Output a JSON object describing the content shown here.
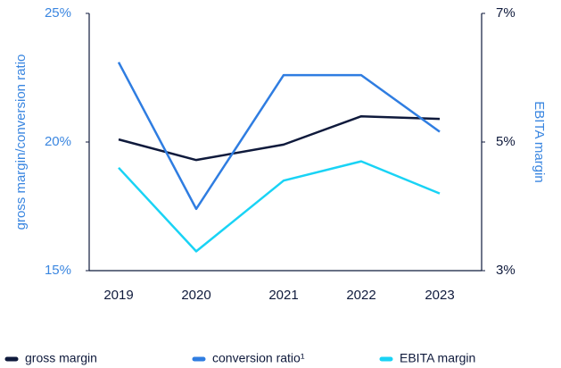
{
  "chart_data": {
    "type": "line",
    "categories": [
      "2019",
      "2020",
      "2021",
      "2022",
      "2023"
    ],
    "ylabel": "gross margin/conversion ratio",
    "y2label": "EBITA margin",
    "ylim": [
      15,
      25
    ],
    "yticks": [
      {
        "value": 15,
        "label": "15%"
      },
      {
        "value": 20,
        "label": "20%"
      },
      {
        "value": 25,
        "label": "25%"
      }
    ],
    "y2lim": [
      3,
      7
    ],
    "y2ticks": [
      {
        "value": 3,
        "label": "3%"
      },
      {
        "value": 5,
        "label": "5%"
      },
      {
        "value": 7,
        "label": "7%"
      }
    ],
    "legend": "bottom",
    "series": [
      {
        "name": "gross margin",
        "color": "#0f1a3c",
        "values": [
          20.1,
          19.3,
          19.9,
          21.0,
          20.9
        ]
      },
      {
        "name": "conversion ratio¹",
        "color": "#2f7de1",
        "values": [
          23.1,
          17.4,
          22.6,
          22.6,
          20.4
        ]
      },
      {
        "name": "EBITA margin",
        "color": "#19d3f5",
        "axis": "y2",
        "values": [
          4.6,
          3.3,
          4.4,
          4.7,
          4.2
        ]
      }
    ]
  }
}
